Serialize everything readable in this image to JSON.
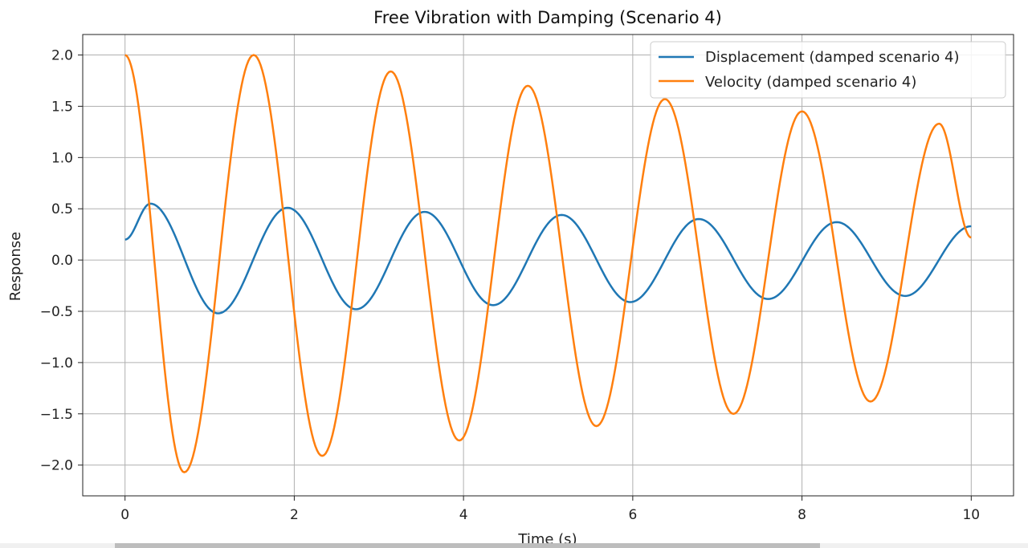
{
  "chart_data": {
    "type": "line",
    "title": "Free Vibration with Damping (Scenario 4)",
    "xlabel": "Time (s)",
    "ylabel": "Response",
    "xlim": [
      -0.5,
      10.5
    ],
    "ylim": [
      -2.3,
      2.2
    ],
    "xticks": [
      0,
      2,
      4,
      6,
      8,
      10
    ],
    "xtick_labels": [
      "0",
      "2",
      "4",
      "6",
      "8",
      "10"
    ],
    "yticks": [
      2.0,
      1.5,
      1.0,
      0.5,
      0.0,
      -0.5,
      -1.0,
      -1.5,
      -2.0
    ],
    "ytick_labels": [
      "2.0",
      "1.5",
      "1.0",
      "0.5",
      "0.0",
      "−0.5",
      "−1.0",
      "−1.5",
      "−2.0"
    ],
    "grid": true,
    "legend_placement": "top-right",
    "series": [
      {
        "name": "Displacement (damped scenario 4)",
        "color": "#1f77b4",
        "x": [
          0,
          0.3,
          1.1,
          1.92,
          2.73,
          3.54,
          4.35,
          5.16,
          5.97,
          6.78,
          7.6,
          8.41,
          9.22,
          10.0
        ],
        "y": [
          0.2,
          0.55,
          -0.52,
          0.51,
          -0.48,
          0.47,
          -0.44,
          0.44,
          -0.41,
          0.4,
          -0.38,
          0.37,
          -0.35,
          0.33
        ]
      },
      {
        "name": "Velocity (damped scenario 4)",
        "color": "#ff7f0e",
        "x": [
          0,
          0.7,
          1.52,
          2.33,
          3.14,
          3.95,
          4.76,
          5.57,
          6.38,
          7.19,
          8.0,
          8.81,
          9.62,
          10.0
        ],
        "y": [
          2.0,
          -2.07,
          2.0,
          -1.91,
          1.84,
          -1.76,
          1.7,
          -1.62,
          1.57,
          -1.5,
          1.45,
          -1.38,
          1.33,
          0.22
        ]
      }
    ]
  }
}
